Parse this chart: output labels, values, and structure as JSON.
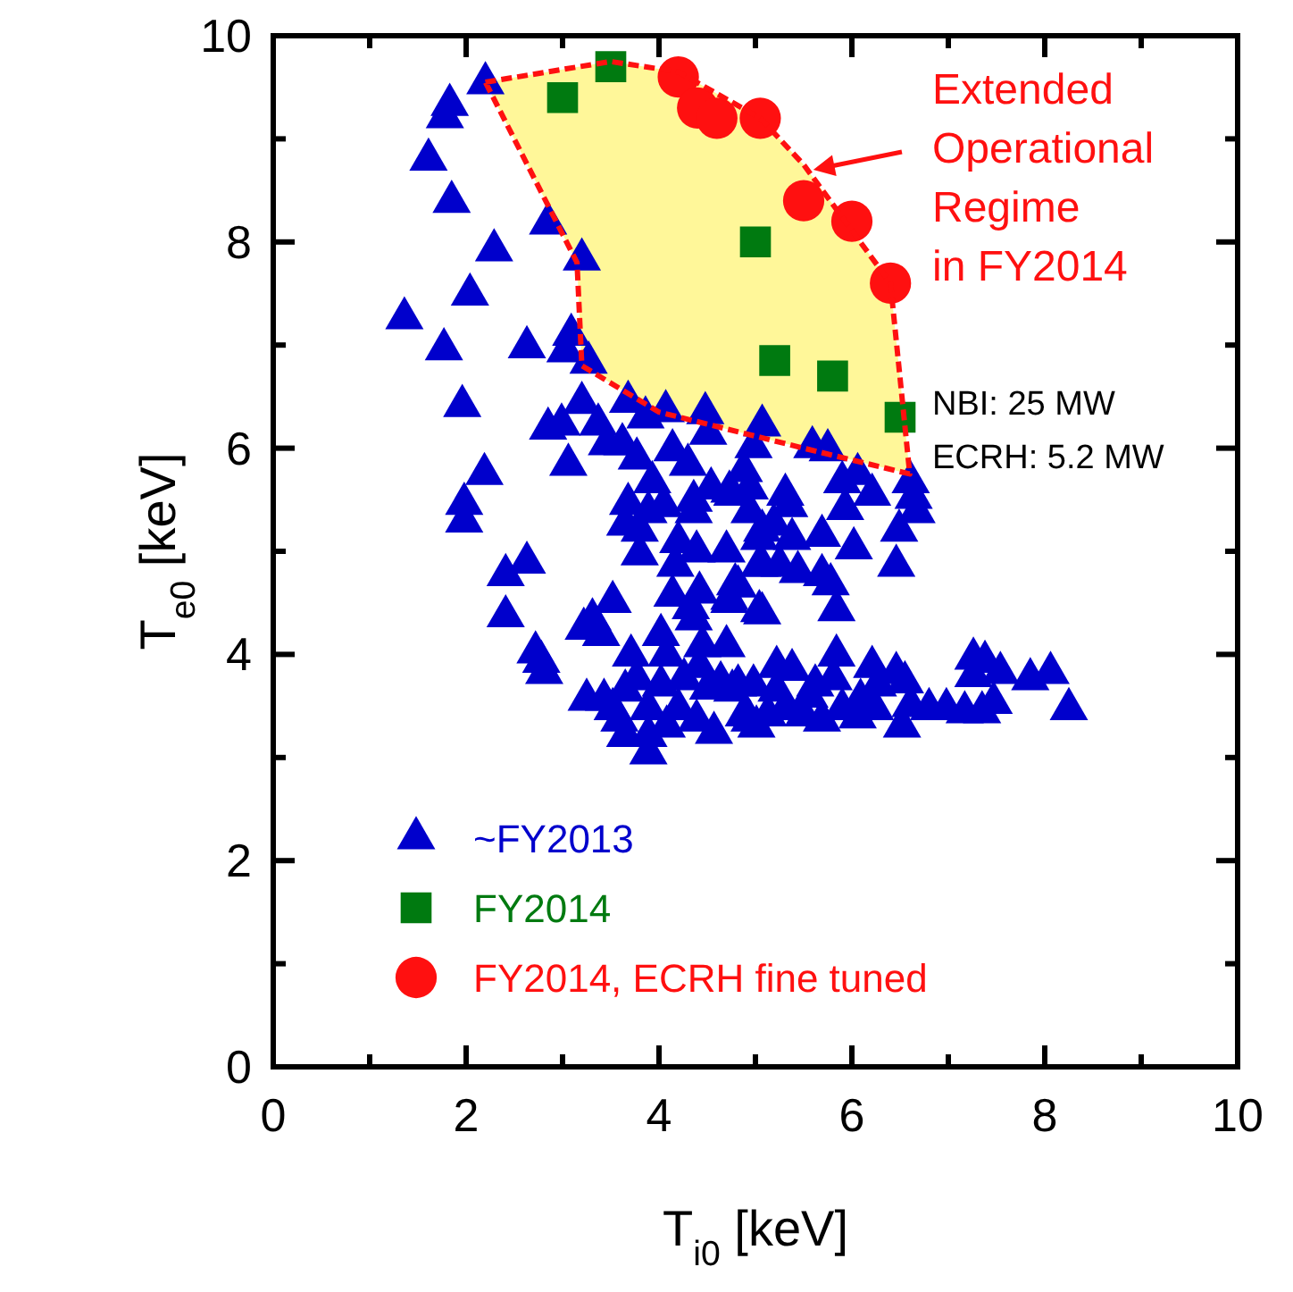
{
  "chart_data": {
    "type": "scatter",
    "xlabel": "T$_{i0}$ [keV]",
    "ylabel": "T$_{e0}$ [keV]",
    "xlim": [
      0,
      10
    ],
    "ylim": [
      0,
      10
    ],
    "xticks": [
      0,
      {
        "value": 1,
        "label": null
      },
      2,
      {
        "value": 3,
        "label": null
      },
      4,
      {
        "value": 5,
        "label": null
      },
      6,
      {
        "value": 7,
        "label": null
      },
      8,
      {
        "value": 9,
        "label": null
      },
      10
    ],
    "yticks": [
      0,
      {
        "value": 1,
        "label": null
      },
      2,
      {
        "value": 3,
        "label": null
      },
      4,
      {
        "value": 5,
        "label": null
      },
      6,
      {
        "value": 7,
        "label": null
      },
      8,
      {
        "value": 9,
        "label": null
      },
      10
    ],
    "grid": false,
    "legend": "bottom left",
    "annotations": [
      {
        "text": "Extended\nOperational\nRegime\nin FY2014",
        "x": 5.6,
        "y": 8.7
      },
      "NBI: 25 MW",
      "ECRH: 5.2 MW"
    ],
    "series": [
      {
        "type": "area",
        "color": "#fff799",
        "line_style": "dashed",
        "x": [
          2.2,
          3.5,
          4.2,
          5.05,
          5.5,
          6.4,
          6.6,
          5.5,
          4.0,
          3.2,
          3.15,
          2.2
        ],
        "values": [
          9.55,
          9.75,
          9.65,
          9.2,
          8.75,
          7.6,
          5.75,
          6.0,
          6.35,
          6.8,
          7.8,
          9.55
        ]
      },
      {
        "name": "~FY2013",
        "color": "#0000cc",
        "marker": "triangle",
        "x": [
          2.2,
          1.83,
          1.78,
          1.61,
          1.85,
          2.85,
          2.29,
          3.2,
          2.04,
          1.36,
          1.77,
          2.63,
          3.09,
          3.03,
          3.27,
          1.96,
          3.2,
          2.85,
          2.99,
          3.37,
          3.68,
          3.86,
          4.07,
          4.48,
          4.51,
          4.14,
          3.62,
          3.77,
          3.06,
          2.19,
          3.46,
          4.3,
          5.07,
          4.98,
          1.98,
          1.98,
          3.68,
          3.89,
          4.05,
          3.65,
          3.8,
          3.93,
          4.36,
          4.54,
          4.36,
          4.73,
          4.88,
          4.94,
          3.8,
          4.2,
          4.39,
          4.7,
          4.17,
          5.07,
          5.04,
          2.41,
          2.63,
          2.41,
          3.52,
          4.14,
          4.42,
          4.33,
          4.79,
          4.73,
          5.04,
          3.22,
          3.31,
          3.4,
          4.36,
          4.02,
          4.08,
          3.71,
          4.45,
          4.7,
          2.72,
          2.78,
          2.81,
          3.25,
          3.43,
          3.65,
          3.77,
          3.89,
          3.59,
          3.65,
          3.89,
          4.02,
          4.26,
          4.42,
          4.51,
          4.2,
          4.39,
          4.57,
          4.64,
          4.82,
          4.98,
          4.88,
          5.01,
          4.08,
          3.52,
          3.89,
          5.59,
          5.75,
          5.9,
          6.06,
          6.21,
          6.61,
          6.64,
          6.67,
          6.49,
          5.93,
          5.69,
          6.02,
          6.46,
          5.31,
          5.35,
          4.94,
          4.76,
          5.19,
          5.04,
          5.38,
          5.07,
          5.25,
          5.44,
          5.69,
          5.78,
          4.82,
          4.73,
          5.07,
          5.84,
          5.22,
          5.38,
          5.84,
          5.62,
          5.81,
          6.21,
          6.46,
          6.55,
          6.27,
          7.26,
          7.38,
          7.26,
          7.54,
          7.85,
          8.06,
          8.25,
          7.47,
          7.35,
          7.17,
          6.98,
          6.8,
          6.61,
          6.52,
          6.24,
          6.06,
          5.9,
          5.69,
          5.5,
          5.31,
          5.13,
          4.94,
          4.76,
          5.56,
          5.22,
          6.09
        ],
        "values": [
          9.54,
          9.33,
          9.21,
          8.8,
          8.39,
          8.18,
          7.92,
          7.83,
          7.49,
          7.26,
          6.96,
          6.98,
          7.1,
          6.94,
          6.83,
          6.41,
          6.44,
          6.19,
          6.23,
          6.23,
          6.45,
          6.3,
          6.36,
          6.34,
          6.14,
          5.98,
          6.04,
          5.9,
          5.84,
          5.75,
          6.04,
          5.84,
          6.22,
          6.01,
          5.46,
          5.29,
          5.46,
          5.38,
          5.44,
          5.26,
          5.2,
          5.67,
          5.49,
          5.61,
          5.38,
          5.58,
          5.78,
          5.38,
          4.97,
          5.09,
          5.0,
          5.0,
          4.86,
          5.2,
          4.86,
          4.77,
          4.89,
          4.37,
          4.51,
          4.57,
          4.6,
          4.45,
          4.68,
          4.54,
          4.42,
          4.25,
          4.34,
          4.19,
          4.34,
          4.19,
          3.99,
          3.99,
          4.08,
          4.08,
          4.02,
          3.93,
          3.82,
          3.56,
          3.56,
          3.65,
          3.76,
          3.47,
          3.36,
          3.21,
          3.04,
          3.7,
          3.76,
          3.88,
          3.67,
          3.47,
          3.36,
          3.24,
          3.73,
          3.7,
          3.7,
          3.41,
          3.3,
          3.3,
          3.47,
          3.21,
          6.01,
          5.98,
          5.67,
          5.75,
          5.55,
          5.67,
          5.52,
          5.38,
          5.2,
          5.41,
          5.15,
          5.03,
          4.86,
          5.55,
          5.44,
          5.61,
          5.55,
          5.26,
          5.12,
          5.12,
          4.86,
          4.86,
          4.8,
          4.77,
          4.68,
          4.66,
          4.51,
          4.4,
          4.43,
          3.88,
          3.85,
          3.99,
          3.7,
          3.76,
          3.88,
          3.82,
          3.73,
          3.7,
          3.96,
          3.93,
          3.79,
          3.82,
          3.76,
          3.82,
          3.47,
          3.53,
          3.44,
          3.44,
          3.47,
          3.47,
          3.5,
          3.3,
          3.47,
          3.39,
          3.47,
          3.36,
          3.41,
          3.47,
          3.41,
          3.36,
          3.65,
          3.59,
          3.65,
          3.56
        ]
      },
      {
        "name": "FY2014",
        "color": "#007a10",
        "marker": "square",
        "x": [
          3.0,
          3.5,
          5.0,
          5.2,
          5.8,
          6.5
        ],
        "values": [
          9.4,
          9.7,
          8.0,
          6.85,
          6.7,
          6.3
        ]
      },
      {
        "name": "FY2014, ECRH fine tuned",
        "color": "#ff1010",
        "marker": "circle",
        "x": [
          4.2,
          4.4,
          4.6,
          5.05,
          5.5,
          6.0,
          6.4
        ],
        "values": [
          9.6,
          9.3,
          9.2,
          9.2,
          8.4,
          8.2,
          7.6
        ]
      }
    ]
  }
}
